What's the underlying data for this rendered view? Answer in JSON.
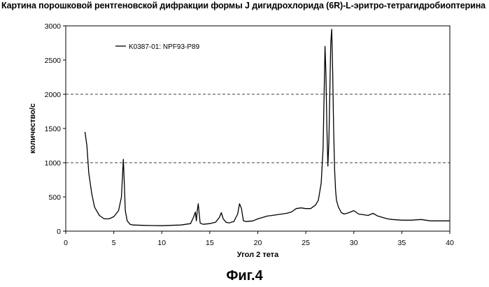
{
  "figure_caption": "Фиг.4",
  "chart_data": {
    "type": "line",
    "title": "Картина порошковой рентгеновской дифракции формы J дигидрохлорида (6R)-L-эритро-тетрагидробиоптерина",
    "xlabel": "Угол 2 тета",
    "ylabel": "количество/с",
    "xlim": [
      0,
      40
    ],
    "ylim": [
      0,
      3000
    ],
    "xticks": [
      "0",
      "5",
      "10",
      "15",
      "20",
      "25",
      "30",
      "35",
      "40"
    ],
    "yticks": [
      "0",
      "500",
      "1000",
      "1500",
      "2000",
      "2500",
      "3000"
    ],
    "gridlines_y": [
      1000,
      2000
    ],
    "grid_style": "dashed",
    "legend_position": "top-left",
    "line_color": "#000000",
    "series": [
      {
        "name": "K0387-01: NPF93-P89",
        "x": [
          2.0,
          2.2,
          2.4,
          2.7,
          3.0,
          3.5,
          4.0,
          4.5,
          5.0,
          5.5,
          5.8,
          6.0,
          6.1,
          6.2,
          6.4,
          6.7,
          7.0,
          8.0,
          9.0,
          10.0,
          11.0,
          12.0,
          13.0,
          13.3,
          13.5,
          13.6,
          13.7,
          13.8,
          13.9,
          14.0,
          14.1,
          14.3,
          15.0,
          15.6,
          16.0,
          16.2,
          16.4,
          16.7,
          17.0,
          17.5,
          17.9,
          18.1,
          18.3,
          18.5,
          18.8,
          19.5,
          20.0,
          20.5,
          21.0,
          21.5,
          22.0,
          22.5,
          23.0,
          23.5,
          24.0,
          24.5,
          25.0,
          25.5,
          26.0,
          26.3,
          26.6,
          26.8,
          27.0,
          27.1,
          27.2,
          27.3,
          27.4,
          27.5,
          27.6,
          27.7,
          27.8,
          27.9,
          28.0,
          28.1,
          28.2,
          28.4,
          28.7,
          29.0,
          29.5,
          30.0,
          30.2,
          30.5,
          31.0,
          31.5,
          32.0,
          32.5,
          33.0,
          33.5,
          34.0,
          35.0,
          36.0,
          37.0,
          38.0,
          39.0,
          40.0
        ],
        "y": [
          1450,
          1250,
          850,
          550,
          350,
          230,
          180,
          180,
          210,
          300,
          500,
          1050,
          700,
          300,
          150,
          100,
          90,
          85,
          82,
          80,
          85,
          90,
          110,
          200,
          280,
          150,
          300,
          400,
          250,
          120,
          110,
          100,
          110,
          130,
          200,
          270,
          180,
          130,
          120,
          140,
          250,
          400,
          330,
          150,
          140,
          150,
          180,
          200,
          220,
          230,
          240,
          250,
          260,
          280,
          330,
          340,
          330,
          330,
          380,
          450,
          700,
          1200,
          2700,
          2300,
          1500,
          950,
          1300,
          2000,
          2750,
          2950,
          2300,
          1500,
          900,
          600,
          450,
          350,
          270,
          250,
          270,
          300,
          280,
          250,
          240,
          230,
          260,
          220,
          200,
          180,
          170,
          160,
          160,
          170,
          150,
          150,
          150
        ]
      }
    ]
  }
}
